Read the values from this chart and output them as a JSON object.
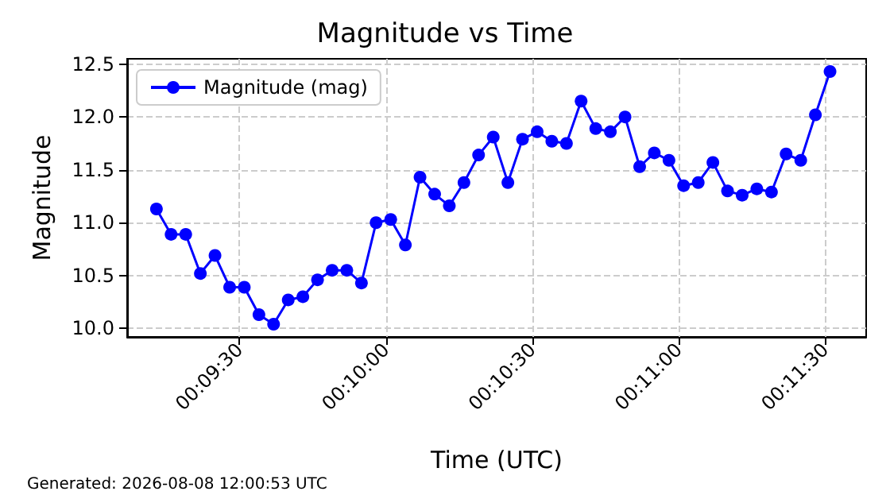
{
  "chart_data": {
    "type": "line",
    "title": "Magnitude vs Time",
    "xlabel": "Time (UTC)",
    "ylabel": "Magnitude",
    "annotations": [
      "Generated: 2026-08-08 12:00:53 UTC"
    ],
    "x": [
      0.153611,
      0.154444,
      0.155278,
      0.156111,
      0.156944,
      0.157778,
      0.158611,
      0.159444,
      0.160278,
      0.161111,
      0.161944,
      0.162778,
      0.163611,
      0.164444,
      0.165278,
      0.166111,
      0.166944,
      0.167778,
      0.168611,
      0.169444,
      0.170278,
      0.171111,
      0.171944,
      0.172778,
      0.173611,
      0.174444,
      0.175278,
      0.176111,
      0.176944,
      0.177778,
      0.178611,
      0.179444,
      0.180278,
      0.181111,
      0.181944,
      0.182778,
      0.183611,
      0.184444,
      0.185278,
      0.186111,
      0.186944,
      0.187778,
      0.188611,
      0.189444,
      0.190278,
      0.191111,
      0.191944
    ],
    "series": [
      {
        "name": "Magnitude (mag)",
        "color": "#0000ff",
        "values": [
          11.13,
          10.89,
          10.89,
          10.52,
          10.69,
          10.39,
          10.39,
          10.13,
          10.04,
          10.27,
          10.3,
          10.46,
          10.55,
          10.55,
          10.43,
          11.0,
          11.03,
          10.79,
          11.43,
          11.27,
          11.16,
          11.38,
          11.64,
          11.81,
          11.38,
          11.79,
          11.86,
          11.77,
          11.75,
          12.15,
          11.89,
          11.86,
          12.0,
          11.53,
          11.66,
          11.59,
          11.35,
          11.38,
          11.57,
          11.3,
          11.26,
          11.32,
          11.29,
          11.65,
          11.59,
          12.02,
          12.43
        ]
      }
    ],
    "xlim": [
      0.151944,
      0.194
    ],
    "xticks": [
      {
        "value": 0.158333,
        "label": "00:09:30"
      },
      {
        "value": 0.166667,
        "label": "00:10:00"
      },
      {
        "value": 0.175,
        "label": "00:10:30"
      },
      {
        "value": 0.183333,
        "label": "00:11:00"
      },
      {
        "value": 0.191667,
        "label": "00:11:30"
      }
    ],
    "ylim": [
      9.92,
      12.55
    ],
    "yticks": [
      {
        "value": 10,
        "label": "10.0"
      },
      {
        "value": 10.5,
        "label": "10.5"
      },
      {
        "value": 11,
        "label": "11.0"
      },
      {
        "value": 11.5,
        "label": "11.5"
      },
      {
        "value": 12,
        "label": "12.0"
      },
      {
        "value": 12.5,
        "label": "12.5"
      }
    ],
    "grid": true,
    "legend": "top left",
    "marker": "circle",
    "line_style": "solid"
  }
}
